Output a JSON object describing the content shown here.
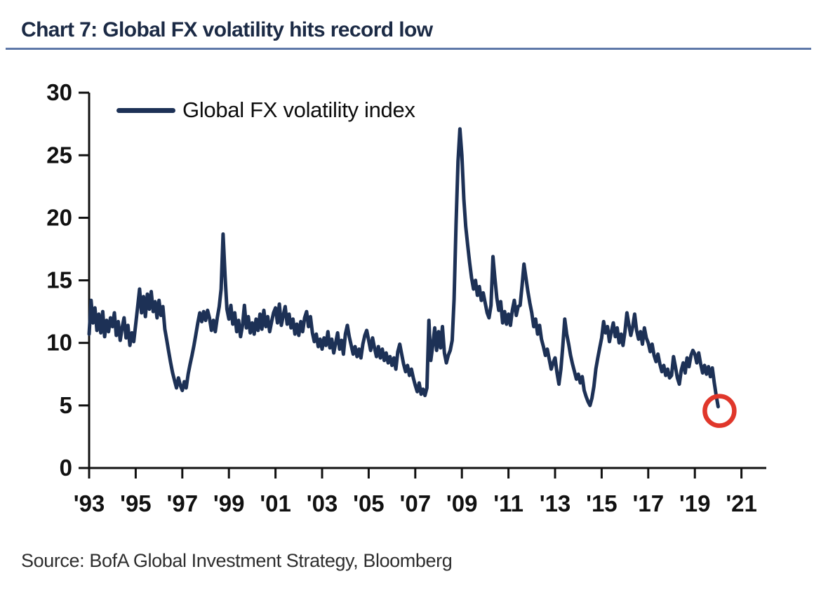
{
  "title": "Chart 7: Global FX volatility hits record low",
  "legend": {
    "label": "Global FX volatility index",
    "swatch_color": "#1d3156"
  },
  "source": "Source: BofA Global Investment Strategy, Bloomberg",
  "colors": {
    "series": "#1d3156",
    "annotation_red": "#e0372b",
    "title_navy": "#1b2a45",
    "rule_blue": "#5e78a8",
    "axis_black": "#111111"
  },
  "chart_data": {
    "type": "line",
    "title": "Chart 7: Global FX volatility hits record low",
    "xlabel": "",
    "ylabel": "",
    "ylim": [
      0,
      30
    ],
    "grid": false,
    "legend_position": "top-left-inside",
    "yticks": [
      0,
      5,
      10,
      15,
      20,
      25,
      30
    ],
    "xticks": [
      {
        "year": 1993,
        "label": "'93"
      },
      {
        "year": 1995,
        "label": "'95"
      },
      {
        "year": 1997,
        "label": "'97"
      },
      {
        "year": 1999,
        "label": "'99"
      },
      {
        "year": 2001,
        "label": "'01"
      },
      {
        "year": 2003,
        "label": "'03"
      },
      {
        "year": 2005,
        "label": "'05"
      },
      {
        "year": 2007,
        "label": "'07"
      },
      {
        "year": 2009,
        "label": "'09"
      },
      {
        "year": 2011,
        "label": "'11"
      },
      {
        "year": 2013,
        "label": "'13"
      },
      {
        "year": 2015,
        "label": "'15"
      },
      {
        "year": 2017,
        "label": "'17"
      },
      {
        "year": 2019,
        "label": "'19"
      },
      {
        "year": 2021,
        "label": "'21"
      }
    ],
    "series": [
      {
        "name": "Global FX volatility index",
        "color": "#1d3156",
        "start_year": 1993,
        "points_per_year": 12,
        "values": [
          10.7,
          13.4,
          11.6,
          12.8,
          11.0,
          12.3,
          10.8,
          12.5,
          10.5,
          11.8,
          10.9,
          12.0,
          11.3,
          12.4,
          10.6,
          11.7,
          10.2,
          11.2,
          12.0,
          10.4,
          11.4,
          9.8,
          10.8,
          10.1,
          11.5,
          12.9,
          14.3,
          12.4,
          13.7,
          12.1,
          13.9,
          12.7,
          14.1,
          12.5,
          13.3,
          12.0,
          13.4,
          12.2,
          12.9,
          11.1,
          10.2,
          9.3,
          8.4,
          7.6,
          7.0,
          6.4,
          7.2,
          6.6,
          6.2,
          6.9,
          6.4,
          7.5,
          8.3,
          9.0,
          9.8,
          10.7,
          11.6,
          12.4,
          11.7,
          12.5,
          11.8,
          12.6,
          12.0,
          11.0,
          11.8,
          10.9,
          12.0,
          12.9,
          14.3,
          18.7,
          15.4,
          12.7,
          11.9,
          13.0,
          11.5,
          12.4,
          10.9,
          11.8,
          10.5,
          11.4,
          13.0,
          11.2,
          12.1,
          10.8,
          11.6,
          10.7,
          11.9,
          11.0,
          12.3,
          11.1,
          12.6,
          11.3,
          12.1,
          10.9,
          11.7,
          12.4,
          12.8,
          11.6,
          13.1,
          11.4,
          12.2,
          12.9,
          11.5,
          12.3,
          11.2,
          11.9,
          10.7,
          11.5,
          10.6,
          11.7,
          10.9,
          12.0,
          12.5,
          11.3,
          12.1,
          10.8,
          10.1,
          10.7,
          9.7,
          10.3,
          9.5,
          10.4,
          9.8,
          10.9,
          9.6,
          10.3,
          9.2,
          10.0,
          10.8,
          9.5,
          10.2,
          9.1,
          10.7,
          11.4,
          10.5,
          9.8,
          9.1,
          9.7,
          8.9,
          9.5,
          8.8,
          9.9,
          10.6,
          11.0,
          10.2,
          9.4,
          10.4,
          9.6,
          8.9,
          9.7,
          8.8,
          9.5,
          8.6,
          9.2,
          8.4,
          8.9,
          8.2,
          8.8,
          7.9,
          9.3,
          9.9,
          9.1,
          8.3,
          7.7,
          8.2,
          7.4,
          7.9,
          7.2,
          6.6,
          6.1,
          6.8,
          5.9,
          6.3,
          5.8,
          6.4,
          11.8,
          8.6,
          9.8,
          11.2,
          9.4,
          10.9,
          9.6,
          11.3,
          9.2,
          8.4,
          9.0,
          9.4,
          10.2,
          13.5,
          19.5,
          24.5,
          27.1,
          25.0,
          21.5,
          19.3,
          17.8,
          16.4,
          15.2,
          14.3,
          15.0,
          13.8,
          14.5,
          13.4,
          14.0,
          13.2,
          12.4,
          12.0,
          13.0,
          16.9,
          15.2,
          13.6,
          12.6,
          13.3,
          11.6,
          12.5,
          11.5,
          12.3,
          11.4,
          12.6,
          13.4,
          12.2,
          12.9,
          13.0,
          14.6,
          16.3,
          15.2,
          14.1,
          13.2,
          12.4,
          11.3,
          11.9,
          10.7,
          11.4,
          10.3,
          9.7,
          9.0,
          9.5,
          8.7,
          7.9,
          8.4,
          8.8,
          7.6,
          6.7,
          7.9,
          9.8,
          11.9,
          10.7,
          9.9,
          9.0,
          8.3,
          7.7,
          7.1,
          7.5,
          6.8,
          7.3,
          6.2,
          5.7,
          5.3,
          5.0,
          5.6,
          6.5,
          7.9,
          8.8,
          9.6,
          10.4,
          11.7,
          10.8,
          11.3,
          10.1,
          10.9,
          11.6,
          10.5,
          11.2,
          10.0,
          10.7,
          9.8,
          10.9,
          12.4,
          11.5,
          10.6,
          11.3,
          12.3,
          11.0,
          10.3,
          10.9,
          9.9,
          11.2,
          10.4,
          10.0,
          9.3,
          9.9,
          9.0,
          8.5,
          9.1,
          8.3,
          7.7,
          8.2,
          7.4,
          7.9,
          7.2,
          7.4,
          8.9,
          8.1,
          7.2,
          6.7,
          7.8,
          8.4,
          7.6,
          8.8,
          8.1,
          9.0,
          9.4,
          9.1,
          8.4,
          9.2,
          8.3,
          7.6,
          8.2,
          7.5,
          8.1,
          7.3,
          8.0,
          6.8,
          5.8,
          4.9
        ]
      }
    ],
    "annotation": {
      "shape": "circle",
      "color": "#e0372b",
      "target": "series-end",
      "meaning": "record low circled at end of series"
    }
  }
}
